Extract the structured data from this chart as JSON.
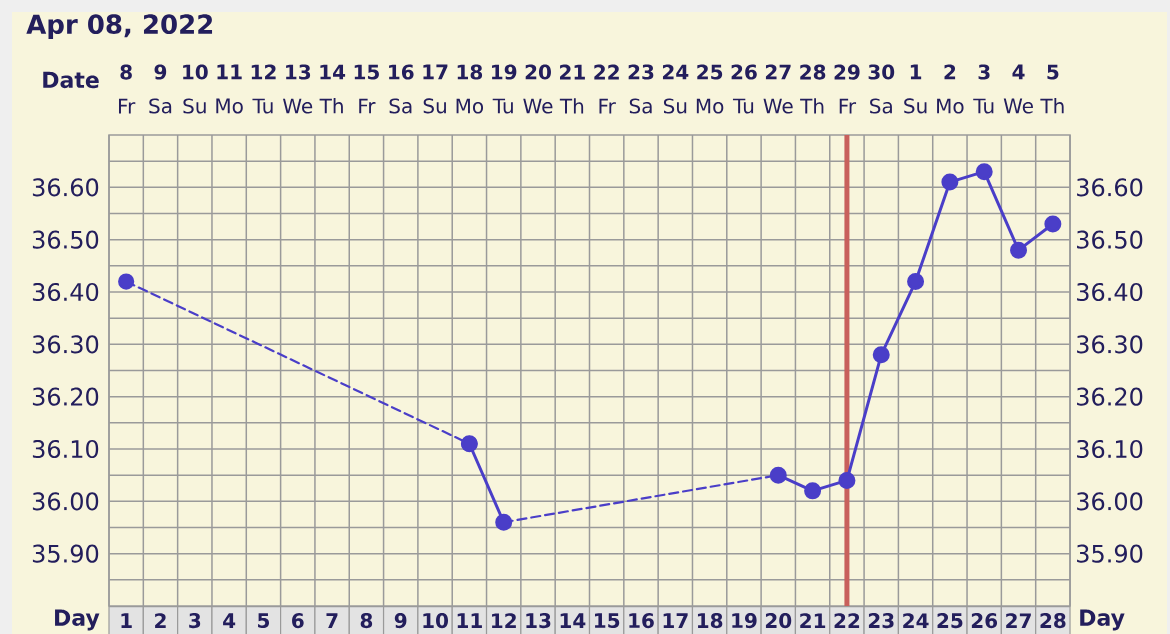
{
  "chart_data": {
    "type": "line",
    "title": "Apr 08, 2022",
    "xlabel": "Day",
    "x2label": "Date",
    "categories": [
      "1",
      "2",
      "3",
      "4",
      "5",
      "6",
      "7",
      "8",
      "9",
      "10",
      "11",
      "12",
      "13",
      "14",
      "15",
      "16",
      "17",
      "18",
      "19",
      "20",
      "21",
      "22",
      "23",
      "24",
      "25",
      "26",
      "27",
      "28"
    ],
    "series": [
      {
        "color": "#4a3ec8",
        "line_style": "dashed",
        "marker": "circle",
        "values": [
          36.42,
          null,
          null,
          null,
          null,
          null,
          null,
          null,
          null,
          null,
          36.11,
          null,
          null,
          null,
          null,
          null,
          null,
          null,
          null,
          null,
          null,
          null,
          null,
          null,
          null,
          null,
          null,
          null
        ]
      },
      {
        "color": "#4a3ec8",
        "line_style": "solid",
        "marker": "circle",
        "values": [
          null,
          null,
          null,
          null,
          null,
          null,
          null,
          null,
          null,
          null,
          36.11,
          35.96,
          null,
          null,
          null,
          null,
          null,
          null,
          null,
          null,
          null,
          null,
          null,
          null,
          null,
          null,
          null,
          null
        ]
      },
      {
        "color": "#4a3ec8",
        "line_style": "dashed",
        "marker": "none",
        "values": [
          null,
          null,
          null,
          null,
          null,
          null,
          null,
          null,
          null,
          null,
          null,
          35.96,
          null,
          null,
          null,
          null,
          null,
          null,
          null,
          36.05,
          null,
          null,
          null,
          null,
          null,
          null,
          null,
          null
        ]
      },
      {
        "color": "#4a3ec8",
        "line_style": "solid",
        "marker": "circle",
        "values": [
          null,
          null,
          null,
          null,
          null,
          null,
          null,
          null,
          null,
          null,
          null,
          null,
          null,
          null,
          null,
          null,
          null,
          null,
          null,
          36.05,
          36.02,
          36.04,
          36.28,
          36.42,
          36.61,
          36.63,
          36.48,
          36.53
        ]
      }
    ],
    "ylim": [
      35.8,
      36.7
    ],
    "yticks": [
      {
        "value": 35.85,
        "label": null
      },
      {
        "value": 35.9,
        "label": "35.90"
      },
      {
        "value": 35.95,
        "label": null
      },
      {
        "value": 36.0,
        "label": "36.00"
      },
      {
        "value": 36.05,
        "label": null
      },
      {
        "value": 36.1,
        "label": "36.10"
      },
      {
        "value": 36.15,
        "label": null
      },
      {
        "value": 36.2,
        "label": "36.20"
      },
      {
        "value": 36.25,
        "label": null
      },
      {
        "value": 36.3,
        "label": "36.30"
      },
      {
        "value": 36.35,
        "label": null
      },
      {
        "value": 36.4,
        "label": "36.40"
      },
      {
        "value": 36.45,
        "label": null
      },
      {
        "value": 36.5,
        "label": "36.50"
      },
      {
        "value": 36.55,
        "label": null
      },
      {
        "value": 36.6,
        "label": "36.60"
      },
      {
        "value": 36.65,
        "label": null
      }
    ],
    "y2lim": [
      35.8,
      36.7
    ],
    "y2ticks": [
      {
        "value": 35.85,
        "label": null
      },
      {
        "value": 35.9,
        "label": "35.90"
      },
      {
        "value": 35.95,
        "label": null
      },
      {
        "value": 36.0,
        "label": "36.00"
      },
      {
        "value": 36.05,
        "label": null
      },
      {
        "value": 36.1,
        "label": "36.10"
      },
      {
        "value": 36.15,
        "label": null
      },
      {
        "value": 36.2,
        "label": "36.20"
      },
      {
        "value": 36.25,
        "label": null
      },
      {
        "value": 36.3,
        "label": "36.30"
      },
      {
        "value": 36.35,
        "label": null
      },
      {
        "value": 36.4,
        "label": "36.40"
      },
      {
        "value": 36.45,
        "label": null
      },
      {
        "value": 36.5,
        "label": "36.50"
      },
      {
        "value": 36.55,
        "label": null
      },
      {
        "value": 36.6,
        "label": "36.60"
      },
      {
        "value": 36.65,
        "label": null
      }
    ],
    "x2lim": [
      "2022-04-07T12:00",
      "2022-05-05T12:00"
    ],
    "x2ticks": [
      {
        "value": "2022-04-08",
        "label": "**8**\nFr"
      },
      {
        "value": "2022-04-09",
        "label": "**9**\nSa"
      },
      {
        "value": "2022-04-10",
        "label": "**10**\nSu"
      },
      {
        "value": "2022-04-11",
        "label": "**11**\nMo"
      },
      {
        "value": "2022-04-12",
        "label": "**12**\nTu"
      },
      {
        "value": "2022-04-13",
        "label": "**13**\nWe"
      },
      {
        "value": "2022-04-14",
        "label": "**14**\nTh"
      },
      {
        "value": "2022-04-15",
        "label": "**15**\nFr"
      },
      {
        "value": "2022-04-16",
        "label": "**16**\nSa"
      },
      {
        "value": "2022-04-17",
        "label": "**17**\nSu"
      },
      {
        "value": "2022-04-18",
        "label": "**18**\nMo"
      },
      {
        "value": "2022-04-19",
        "label": "**19**\nTu"
      },
      {
        "value": "2022-04-20",
        "label": "**20**\nWe"
      },
      {
        "value": "2022-04-21",
        "label": "**21**\nTh"
      },
      {
        "value": "2022-04-22",
        "label": "**22**\nFr"
      },
      {
        "value": "2022-04-23",
        "label": "**23**\nSa"
      },
      {
        "value": "2022-04-24",
        "label": "**24**\nSu"
      },
      {
        "value": "2022-04-25",
        "label": "**25**\nMo"
      },
      {
        "value": "2022-04-26",
        "label": "**26**\nTu"
      },
      {
        "value": "2022-04-27",
        "label": "**27**\nWe"
      },
      {
        "value": "2022-04-28",
        "label": "**28**\nTh"
      },
      {
        "value": "2022-04-29",
        "label": "**29**\nFr"
      },
      {
        "value": "2022-04-30",
        "label": "**30**\nSa"
      },
      {
        "value": "2022-05-01",
        "label": "**1**\nSu"
      },
      {
        "value": "2022-05-02",
        "label": "**2**\nMo"
      },
      {
        "value": "2022-05-03",
        "label": "**3**\nTu"
      },
      {
        "value": "2022-05-04",
        "label": "**4**\nWe"
      },
      {
        "value": "2022-05-05",
        "label": "**5**\nTh"
      }
    ],
    "ref_lines": [
      {
        "axis": "x",
        "value": "22",
        "color": "#c8605c"
      }
    ],
    "grid": true
  }
}
